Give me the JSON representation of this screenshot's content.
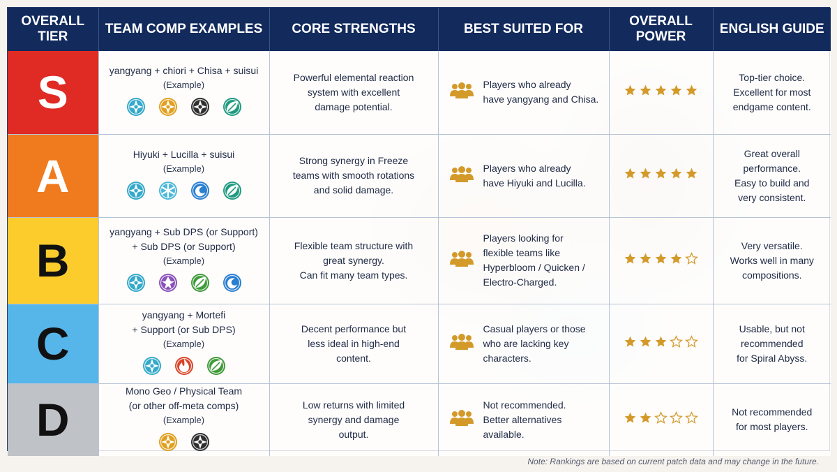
{
  "headers": {
    "tier": "OVERALL TIER",
    "team": "TEAM COMP EXAMPLES",
    "strengths": "CORE STRENGTHS",
    "suited": "BEST SUITED FOR",
    "power": "OVERALL POWER",
    "guide": "ENGLISH GUIDE"
  },
  "rows": [
    {
      "tier": "S",
      "tier_color": "#e02a24",
      "tier_text_color": "#ffffff",
      "team_line1": "yangyang + chiori + Chisa + suisui",
      "team_line2": "",
      "example": "(Example)",
      "icons": [
        {
          "name": "anemo-element-icon",
          "color": "#35a9c9"
        },
        {
          "name": "geo-element-icon",
          "color": "#e0a020"
        },
        {
          "name": "dark-element-icon",
          "color": "#2f2f2f"
        },
        {
          "name": "dendro-swirl-element-icon",
          "color": "#1f9a80"
        }
      ],
      "strengths_1": "Powerful elemental reaction",
      "strengths_2": "system with excellent",
      "strengths_3": "damage potential.",
      "suited_1": "Players who already",
      "suited_2": "have yangyang and Chisa.",
      "suited_3": "",
      "suited_4": "",
      "stars": 5,
      "guide_1": "Top-tier choice.",
      "guide_2": "Excellent for most",
      "guide_3": "endgame content.",
      "guide_4": ""
    },
    {
      "tier": "A",
      "tier_color": "#f07a1e",
      "tier_text_color": "#ffffff",
      "team_line1": "Hiyuki + Lucilla + suisui",
      "team_line2": "",
      "example": "(Example)",
      "icons": [
        {
          "name": "anemo-element-icon",
          "color": "#35a9c9"
        },
        {
          "name": "cryo-element-icon",
          "color": "#4db8d8"
        },
        {
          "name": "hydro-element-icon",
          "color": "#2a7fd0"
        },
        {
          "name": "dendro-element-icon",
          "color": "#1f9a80"
        }
      ],
      "strengths_1": "Strong synergy in Freeze",
      "strengths_2": "teams with smooth rotations",
      "strengths_3": "and solid damage.",
      "suited_1": "Players who already",
      "suited_2": "have Hiyuki and Lucilla.",
      "suited_3": "",
      "suited_4": "",
      "stars": 5,
      "guide_1": "Great overall",
      "guide_2": "performance.",
      "guide_3": "Easy to build and",
      "guide_4": "very consistent."
    },
    {
      "tier": "B",
      "tier_color": "#fbcc2c",
      "tier_text_color": "#111111",
      "team_line1": "yangyang + Sub DPS (or Support)",
      "team_line2": "+ Sub DPS (or Support)",
      "example": "(Example)",
      "icons": [
        {
          "name": "anemo-element-icon",
          "color": "#35a9c9"
        },
        {
          "name": "electro-element-icon",
          "color": "#8a52b8"
        },
        {
          "name": "dendro-element-icon",
          "color": "#3f9a3a"
        },
        {
          "name": "hydro-element-icon",
          "color": "#2a7fd0"
        }
      ],
      "strengths_1": "Flexible team structure with",
      "strengths_2": "great synergy.",
      "strengths_3": "Can fit many team types.",
      "suited_1": "Players looking for",
      "suited_2": "flexible teams like",
      "suited_3": "Hyperbloom / Quicken /",
      "suited_4": "Electro-Charged.",
      "stars": 4,
      "guide_1": "Very versatile.",
      "guide_2": "Works well in many",
      "guide_3": "compositions.",
      "guide_4": ""
    },
    {
      "tier": "C",
      "tier_color": "#56b6ea",
      "tier_text_color": "#111111",
      "team_line1": "yangyang + Mortefi",
      "team_line2": "+ Support (or Sub DPS)",
      "example": "(Example)",
      "icons": [
        {
          "name": "anemo-element-icon",
          "color": "#35a9c9"
        },
        {
          "name": "pyro-element-icon",
          "color": "#d9452b"
        },
        {
          "name": "dendro-element-icon",
          "color": "#3f9a3a"
        }
      ],
      "strengths_1": "Decent performance but",
      "strengths_2": "less ideal in high-end",
      "strengths_3": "content.",
      "suited_1": "Casual players or those",
      "suited_2": "who are lacking key",
      "suited_3": "characters.",
      "suited_4": "",
      "stars": 3,
      "guide_1": "Usable, but not",
      "guide_2": "recommended",
      "guide_3": "for Spiral Abyss.",
      "guide_4": ""
    },
    {
      "tier": "D",
      "tier_color": "#bfc2c7",
      "tier_text_color": "#111111",
      "team_line1": "Mono Geo / Physical Team",
      "team_line2": "(or other off-meta comps)",
      "example": "(Example)",
      "icons": [
        {
          "name": "geo-element-icon",
          "color": "#e0a020"
        },
        {
          "name": "dark-element-icon",
          "color": "#2f2f2f"
        }
      ],
      "strengths_1": "Low returns with limited",
      "strengths_2": "synergy and damage",
      "strengths_3": "output.",
      "suited_1": "Not recommended.",
      "suited_2": "Better alternatives",
      "suited_3": "available.",
      "suited_4": "",
      "stars": 2,
      "guide_1": "Not recommended",
      "guide_2": "for most players.",
      "guide_3": "",
      "guide_4": ""
    }
  ],
  "star_color": "#d39a2a",
  "people_icon_color": "#d39a2a",
  "note": "Note: Rankings are based on current patch data and may change in the future."
}
